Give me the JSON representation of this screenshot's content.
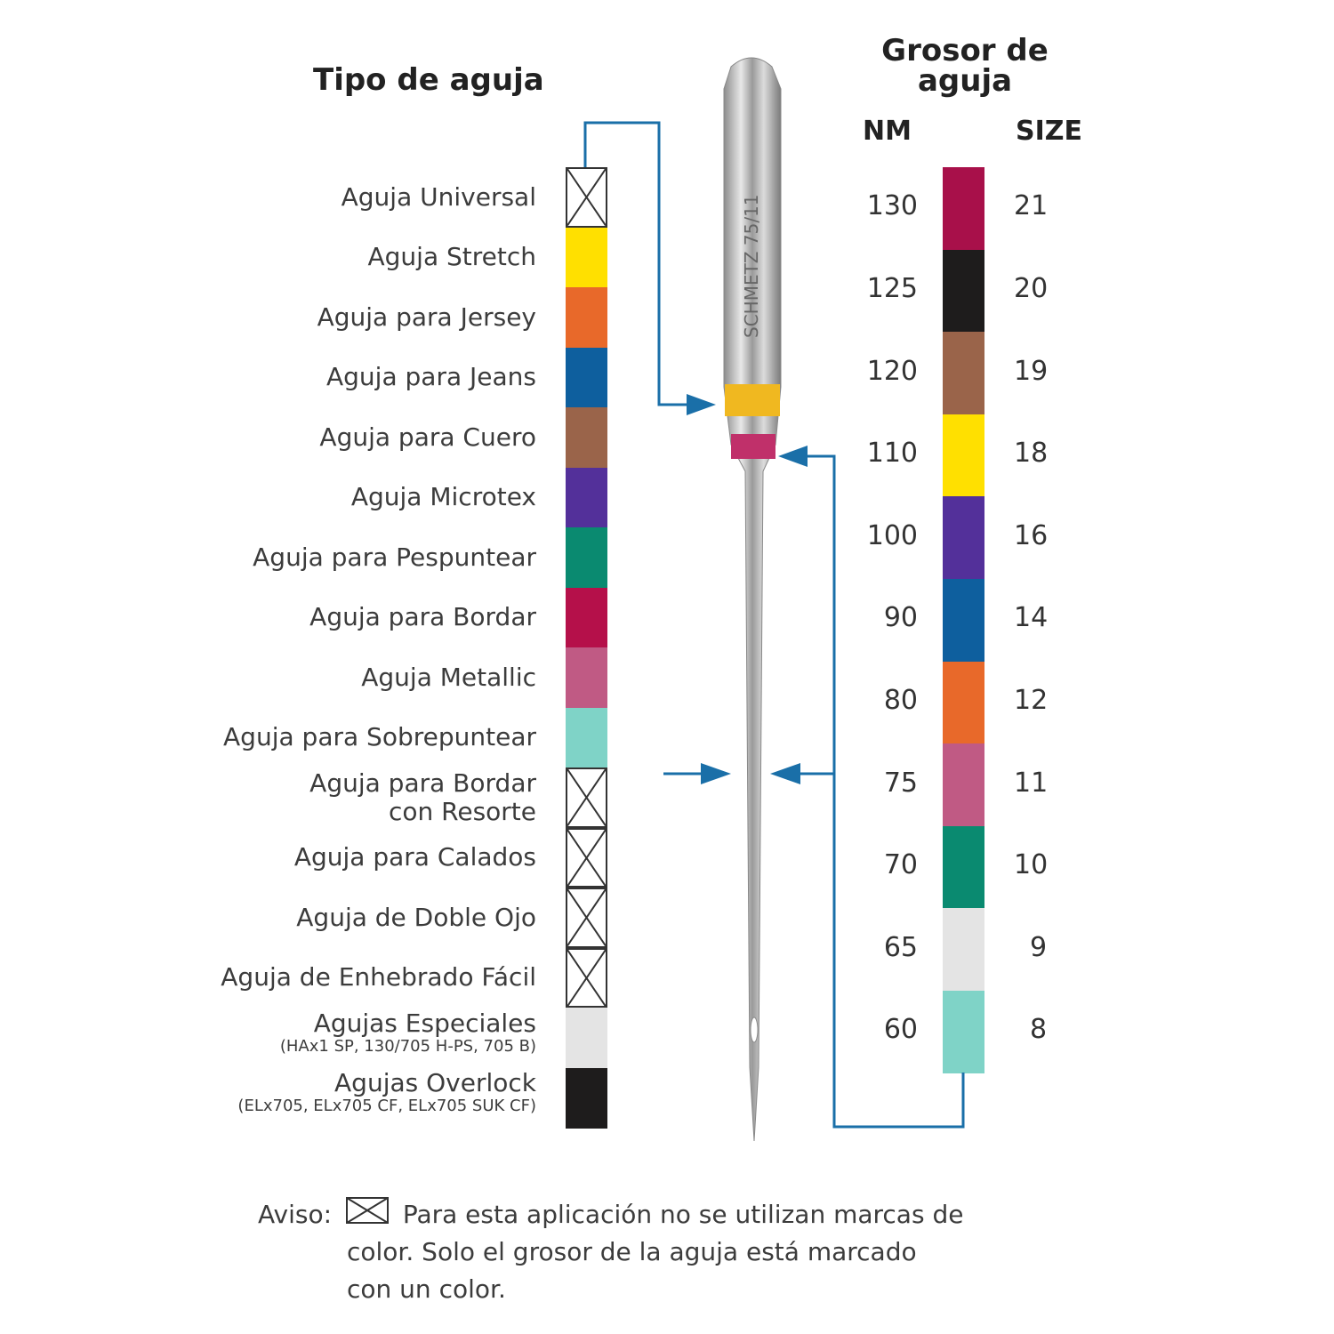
{
  "titles": {
    "type": "Tipo de aguja",
    "thickness": "Grosor de aguja",
    "nm": "NM",
    "size": "SIZE"
  },
  "needle_engraving": "SCHMETZ 75/11",
  "types": [
    {
      "label": "Aguja Universal",
      "color": null
    },
    {
      "label": "Aguja Stretch",
      "color": "#ffe000"
    },
    {
      "label": "Aguja para Jersey",
      "color": "#e8692a"
    },
    {
      "label": "Aguja para Jeans",
      "color": "#0e5f9e"
    },
    {
      "label": "Aguja para Cuero",
      "color": "#9a644a"
    },
    {
      "label": "Aguja Microtex",
      "color": "#53309a"
    },
    {
      "label": "Aguja para Pespuntear",
      "color": "#0a8a70"
    },
    {
      "label": "Aguja para Bordar",
      "color": "#b5104a"
    },
    {
      "label": "Aguja Metallic",
      "color": "#c05a84"
    },
    {
      "label": "Aguja para Sobrepuntear",
      "color": "#7fd3c7"
    },
    {
      "label": "Aguja para Bordar",
      "label2": "con Resorte",
      "color": null
    },
    {
      "label": "Aguja para Calados",
      "color": null
    },
    {
      "label": "Aguja de Doble Ojo",
      "color": null
    },
    {
      "label": "Aguja de Enhebrado Fácil",
      "color": null
    },
    {
      "label": "Agujas Especiales",
      "sub": "(HAx1 SP, 130/705 H-PS, 705 B)",
      "color": "#e4e4e4"
    },
    {
      "label": "Agujas Overlock",
      "sub": "(ELx705, ELx705 CF, ELx705 SUK CF)",
      "color": "#1e1c1c"
    }
  ],
  "sizes": [
    {
      "nm": "130",
      "size": "21",
      "color": "#a8104a"
    },
    {
      "nm": "125",
      "size": "20",
      "color": "#1e1c1c"
    },
    {
      "nm": "120",
      "size": "19",
      "color": "#9a644a"
    },
    {
      "nm": "110",
      "size": "18",
      "color": "#ffe000"
    },
    {
      "nm": "100",
      "size": "16",
      "color": "#53309a"
    },
    {
      "nm": "90",
      "size": "14",
      "color": "#0e5f9e"
    },
    {
      "nm": "80",
      "size": "12",
      "color": "#e8692a"
    },
    {
      "nm": "75",
      "size": "11",
      "color": "#c05a84"
    },
    {
      "nm": "70",
      "size": "10",
      "color": "#0a8a70"
    },
    {
      "nm": "65",
      "size": "9",
      "color": "#e4e4e4"
    },
    {
      "nm": "60",
      "size": "8",
      "color": "#7fd3c7"
    }
  ],
  "note": {
    "prefix": "Aviso:",
    "line1": "Para esta aplicación no se utilizan marcas de",
    "line2": "color. Solo el grosor de la aguja está marcado",
    "line3": "con un color."
  },
  "connector_color": "#1a6fa8"
}
